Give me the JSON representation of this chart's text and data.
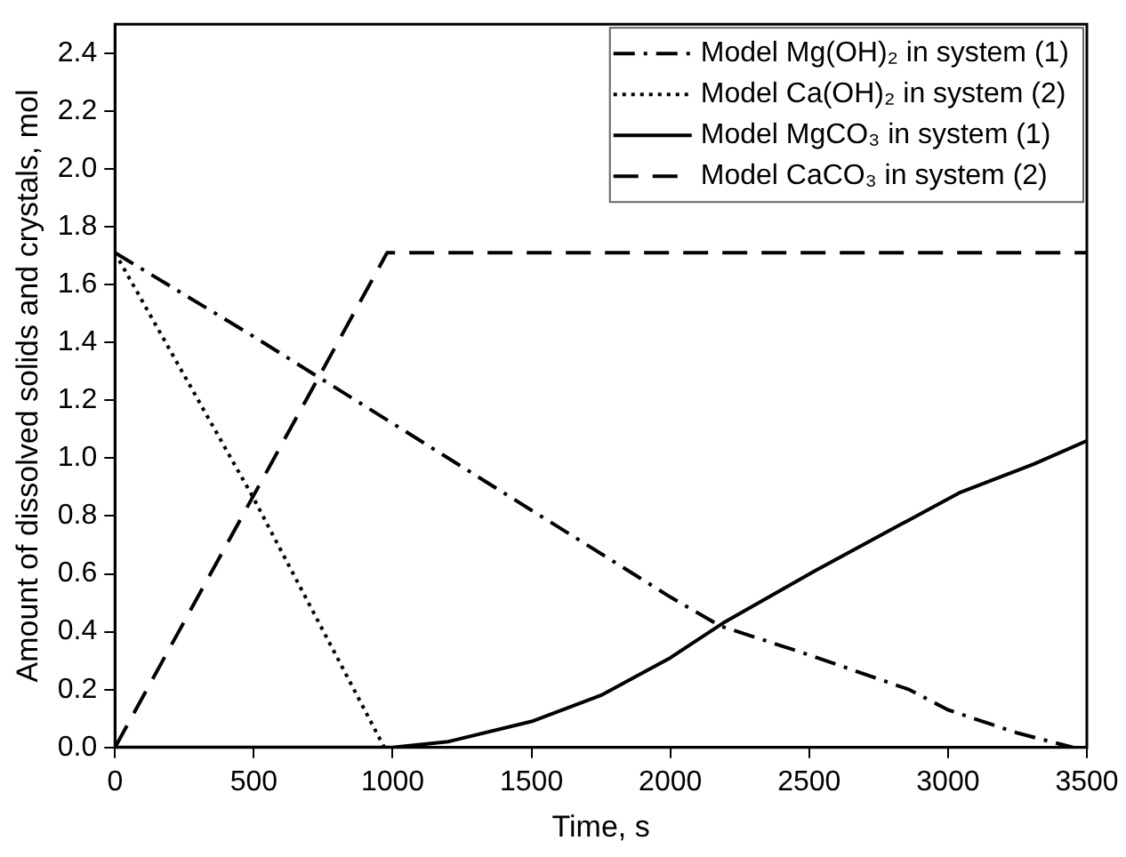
{
  "chart_data": {
    "type": "line",
    "xlabel": "Time, s",
    "ylabel": "Amount of dissolved solids and crystals, mol",
    "xlim": [
      0,
      3500
    ],
    "xticks": [
      0,
      500,
      1000,
      1500,
      2000,
      2500,
      3000,
      3500
    ],
    "ylim": [
      0,
      2.5
    ],
    "yticks": [
      {
        "value": 0,
        "label": "0.0"
      },
      0.2,
      0.4,
      0.6,
      0.8,
      {
        "value": 1,
        "label": "1.0"
      },
      1.2,
      1.4,
      1.6,
      1.8,
      {
        "value": 2,
        "label": "2.0"
      },
      2.2,
      2.4
    ],
    "grid": false,
    "legend": "top right",
    "marker": "none",
    "series": [
      {
        "name": "Model Mg(OH)₂ in system (1)",
        "color": "#000000",
        "line_style": "dashdot",
        "x": [
          0,
          500,
          1000,
          1500,
          2000,
          2180,
          2500,
          2860,
          3000,
          3250,
          3450
        ],
        "values": [
          1.71,
          1.42,
          1.12,
          0.82,
          0.52,
          0.42,
          0.32,
          0.2,
          0.13,
          0.05,
          0.0
        ]
      },
      {
        "name": "Model Ca(OH)₂ in system (2)",
        "color": "#000000",
        "line_style": "dotted",
        "x": [
          0,
          500,
          970
        ],
        "values": [
          1.71,
          0.86,
          0.0
        ]
      },
      {
        "name": "Model MgCO₃ in system (1)",
        "color": "#000000",
        "line_style": "solid",
        "x": [
          0,
          1000,
          1200,
          1500,
          1750,
          2000,
          2190,
          2520,
          3040,
          3310,
          3500
        ],
        "values": [
          0.0,
          0.0,
          0.02,
          0.09,
          0.18,
          0.31,
          0.43,
          0.61,
          0.88,
          0.98,
          1.06
        ]
      },
      {
        "name": "Model CaCO₃ in system (2)",
        "color": "#000000",
        "line_style": "dashed",
        "x": [
          0,
          980,
          3500
        ],
        "values": [
          0.0,
          1.71,
          1.71
        ]
      }
    ]
  }
}
